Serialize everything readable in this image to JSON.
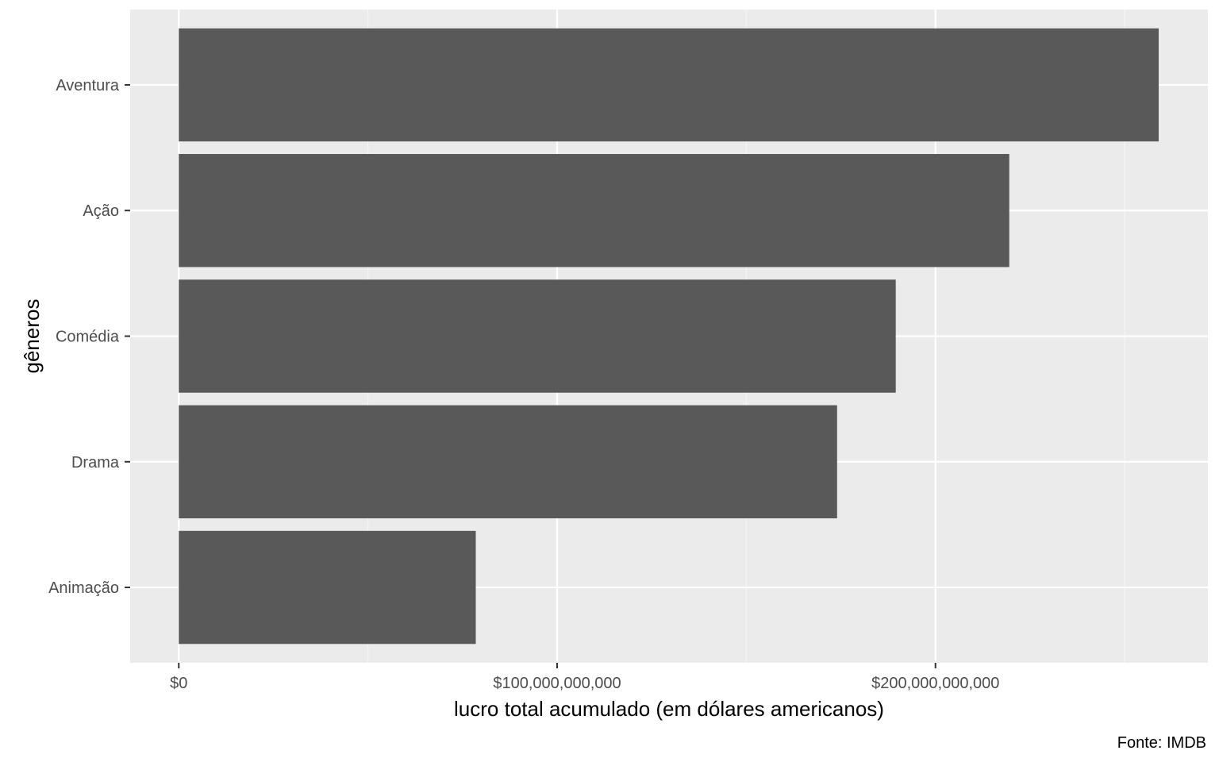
{
  "chart_data": {
    "type": "bar",
    "orientation": "horizontal",
    "categories": [
      "Aventura",
      "Ação",
      "Comédia",
      "Drama",
      "Animação"
    ],
    "values": [
      259000000000,
      219500000000,
      189500000000,
      174000000000,
      78500000000
    ],
    "xlabel": "lucro total acumulado (em dólares americanos)",
    "ylabel": "gêneros",
    "caption": "Fonte: IMDB",
    "xlim": [
      -12850000000,
      272000000000
    ],
    "x_ticks": [
      0,
      100000000000,
      200000000000
    ],
    "x_tick_labels": [
      "$0",
      "$100,000,000,000",
      "$200,000,000,000"
    ],
    "grid": true,
    "legend": "none",
    "colors": {
      "bar": "#595959",
      "panel_background": "#ebebeb",
      "grid_major": "#ffffff",
      "grid_minor": "#f5f5f5",
      "tick_label": "#4d4d4d",
      "axis_title": "#000000"
    }
  }
}
